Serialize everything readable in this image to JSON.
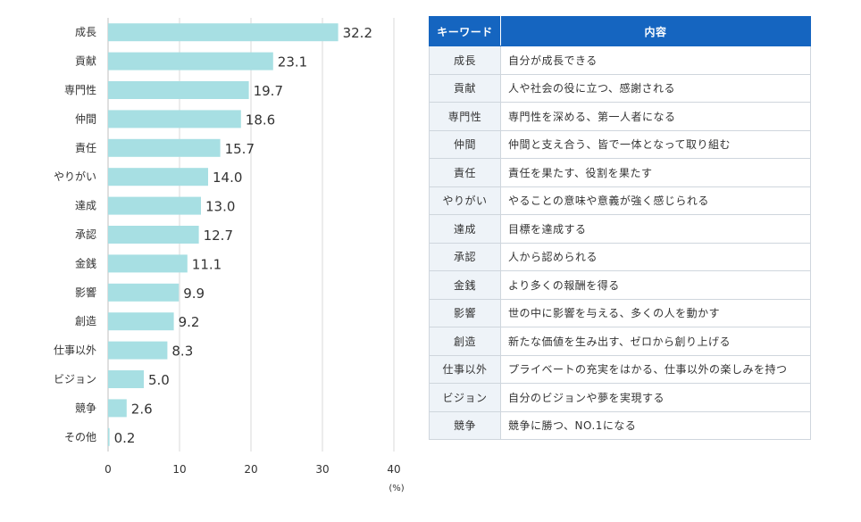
{
  "chart_data": {
    "type": "bar",
    "orientation": "horizontal",
    "categories": [
      "成長",
      "貢献",
      "専門性",
      "仲間",
      "責任",
      "やりがい",
      "達成",
      "承認",
      "金銭",
      "影響",
      "創造",
      "仕事以外",
      "ビジョン",
      "競争",
      "その他"
    ],
    "values": [
      32.2,
      23.1,
      19.7,
      18.6,
      15.7,
      14.0,
      13.0,
      12.7,
      11.1,
      9.9,
      9.2,
      8.3,
      5.0,
      2.6,
      0.2
    ],
    "value_labels": [
      "32.2",
      "23.1",
      "19.7",
      "18.6",
      "15.7",
      "14.0",
      "13.0",
      "12.7",
      "11.1",
      "9.9",
      "9.2",
      "8.3",
      "5.0",
      "2.6",
      "0.2"
    ],
    "xlim": [
      0,
      40
    ],
    "xticks": [
      0,
      10,
      20,
      30,
      40
    ],
    "xtick_labels": [
      "0",
      "10",
      "20",
      "30",
      "40"
    ],
    "xlabel": "(%)",
    "bar_color": "#a7dfe3",
    "grid": true
  },
  "table": {
    "headers": [
      "キーワード",
      "内容"
    ],
    "rows": [
      {
        "keyword": "成長",
        "content": "自分が成長できる"
      },
      {
        "keyword": "貢献",
        "content": "人や社会の役に立つ、感謝される"
      },
      {
        "keyword": "専門性",
        "content": "専門性を深める、第一人者になる"
      },
      {
        "keyword": "仲間",
        "content": "仲間と支え合う、皆で一体となって取り組む"
      },
      {
        "keyword": "責任",
        "content": "責任を果たす、役割を果たす"
      },
      {
        "keyword": "やりがい",
        "content": "やることの意味や意義が強く感じられる"
      },
      {
        "keyword": "達成",
        "content": "目標を達成する"
      },
      {
        "keyword": "承認",
        "content": "人から認められる"
      },
      {
        "keyword": "金銭",
        "content": "より多くの報酬を得る"
      },
      {
        "keyword": "影響",
        "content": "世の中に影響を与える、多くの人を動かす"
      },
      {
        "keyword": "創造",
        "content": "新たな価値を生み出す、ゼロから創り上げる"
      },
      {
        "keyword": "仕事以外",
        "content": "プライベートの充実をはかる、仕事以外の楽しみを持つ"
      },
      {
        "keyword": "ビジョン",
        "content": "自分のビジョンや夢を実現する"
      },
      {
        "keyword": "競争",
        "content": "競争に勝つ、NO.1になる"
      }
    ],
    "header_color": "#1565c0"
  }
}
